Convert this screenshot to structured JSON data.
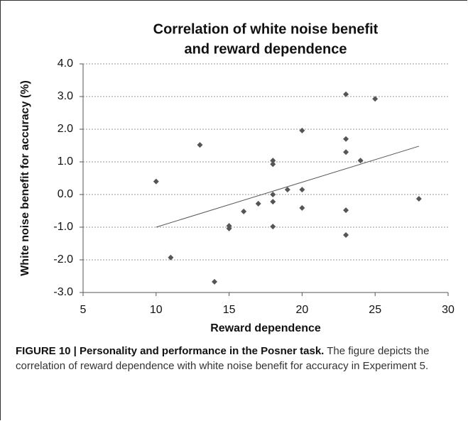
{
  "chart_data": {
    "type": "scatter",
    "title": [
      "Correlation of white noise benefit",
      "and reward dependence"
    ],
    "xlabel": "Reward dependence",
    "ylabel": "White noise benefit for accuracy (%)",
    "x": [
      10,
      11,
      13,
      14,
      15,
      15,
      16,
      17,
      18,
      18,
      18,
      18,
      18,
      19,
      20,
      20,
      20,
      23,
      23,
      23,
      23,
      23,
      24,
      25,
      28
    ],
    "values": [
      0.4,
      -1.93,
      1.52,
      -2.67,
      -0.96,
      -1.04,
      -0.52,
      -0.28,
      1.04,
      0.93,
      0.0,
      -0.22,
      -0.98,
      0.15,
      1.96,
      0.15,
      -0.41,
      3.07,
      1.7,
      1.3,
      -0.48,
      -1.24,
      1.04,
      2.93,
      -0.13
    ],
    "color": "#555555",
    "trendline": {
      "x": [
        10,
        28
      ],
      "y": [
        -1.0,
        1.48
      ],
      "color": "#555555"
    },
    "xlim": [
      5,
      30
    ],
    "xticks": [
      5,
      10,
      15,
      20,
      25,
      30
    ],
    "ylim": [
      -3,
      4
    ],
    "yticks": [
      {
        "value": -3,
        "label": "-3.0"
      },
      {
        "value": -2,
        "label": "-2.0"
      },
      {
        "value": -1,
        "label": "-1.0"
      },
      {
        "value": 0,
        "label": "0.0"
      },
      {
        "value": 1,
        "label": "1.0"
      },
      {
        "value": 2,
        "label": "2.0"
      },
      {
        "value": 3,
        "label": "3.0"
      },
      {
        "value": 4,
        "label": "4.0"
      }
    ],
    "grid": true
  },
  "caption": {
    "label": "FIGURE 10 | Personality and performance in the Posner task.",
    "text": "The figure depicts the correlation of reward dependence with white noise benefit for accuracy in Experiment 5."
  }
}
